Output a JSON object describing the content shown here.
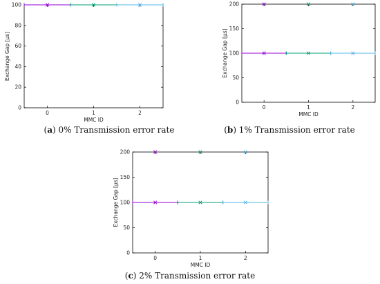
{
  "chart_data": [
    {
      "type": "scatter",
      "panel_label": "a",
      "caption": "0% Transmission error rate",
      "xlabel": "MMC ID",
      "ylabel": "Exchange Gap [μs]",
      "xticks": [
        "0",
        "1",
        "2"
      ],
      "yticks": [
        "0",
        "20",
        "40",
        "60",
        "80",
        "100"
      ],
      "xlim": [
        -0.5,
        2.5
      ],
      "ylim": [
        0,
        100
      ],
      "grid": false,
      "series": [
        {
          "color": "#9400d3",
          "points": [
            {
              "x": 0,
              "y": 100,
              "xmin": -0.5,
              "xmax": 0.5
            }
          ]
        },
        {
          "color": "#009e73",
          "points": [
            {
              "x": 1,
              "y": 100,
              "xmin": 0.5,
              "xmax": 1.5
            }
          ]
        },
        {
          "color": "#56b4e9",
          "points": [
            {
              "x": 2,
              "y": 100,
              "xmin": 1.5,
              "xmax": 2.5
            }
          ]
        }
      ]
    },
    {
      "type": "scatter",
      "panel_label": "b",
      "caption": "1% Transmission error rate",
      "xlabel": "MMC ID",
      "ylabel": "Exchange Gap [μs]",
      "xticks": [
        "0",
        "1",
        "2"
      ],
      "yticks": [
        "0",
        "50",
        "100",
        "150",
        "200"
      ],
      "xlim": [
        -0.5,
        2.5
      ],
      "ylim": [
        0,
        200
      ],
      "grid": false,
      "series": [
        {
          "color": "#9400d3",
          "points": [
            {
              "x": 0,
              "y": 200
            },
            {
              "x": 0,
              "y": 100,
              "xmin": -0.5,
              "xmax": 0.5
            }
          ]
        },
        {
          "color": "#009e73",
          "points": [
            {
              "x": 1,
              "y": 200
            },
            {
              "x": 1,
              "y": 100,
              "xmin": 0.5,
              "xmax": 1.5
            }
          ]
        },
        {
          "color": "#56b4e9",
          "points": [
            {
              "x": 2,
              "y": 200
            },
            {
              "x": 2,
              "y": 100,
              "xmin": 1.5,
              "xmax": 2.5
            }
          ]
        }
      ]
    },
    {
      "type": "scatter",
      "panel_label": "c",
      "caption": "2% Transmission error rate",
      "xlabel": "MMC ID",
      "ylabel": "Exchange Gap [μs]",
      "xticks": [
        "0",
        "1",
        "2"
      ],
      "yticks": [
        "0",
        "50",
        "100",
        "150",
        "200"
      ],
      "xlim": [
        -0.5,
        2.5
      ],
      "ylim": [
        0,
        200
      ],
      "grid": false,
      "series": [
        {
          "color": "#9400d3",
          "points": [
            {
              "x": 0,
              "y": 200
            },
            {
              "x": 0,
              "y": 100,
              "xmin": -0.5,
              "xmax": 0.5
            }
          ]
        },
        {
          "color": "#009e73",
          "points": [
            {
              "x": 1,
              "y": 200
            },
            {
              "x": 1,
              "y": 100,
              "xmin": 0.5,
              "xmax": 1.5
            }
          ]
        },
        {
          "color": "#56b4e9",
          "points": [
            {
              "x": 2,
              "y": 200
            },
            {
              "x": 2,
              "y": 100,
              "xmin": 1.5,
              "xmax": 2.5
            }
          ]
        }
      ]
    }
  ]
}
